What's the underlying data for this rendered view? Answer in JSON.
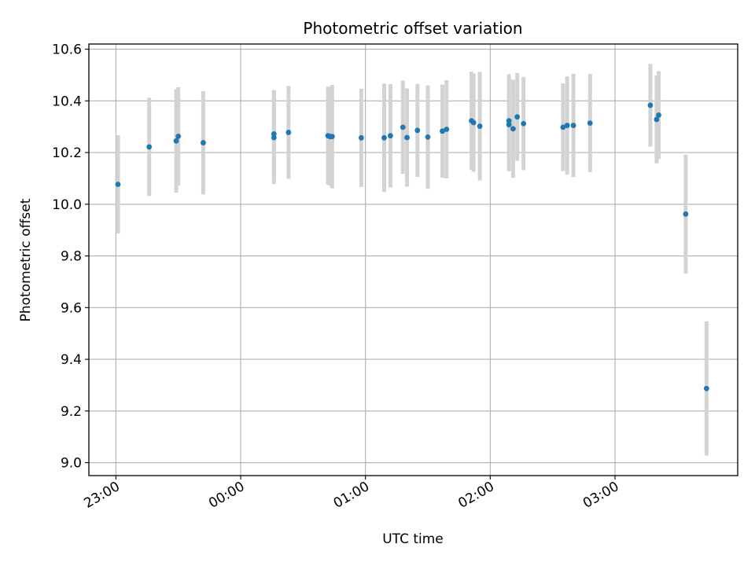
{
  "chart_data": {
    "type": "scatter",
    "title": "Photometric offset variation",
    "xlabel": "UTC time",
    "ylabel": "Photometric offset",
    "x_unit": "UTC",
    "x_ticks": [
      "23:00",
      "00:00",
      "01:00",
      "02:00",
      "03:00"
    ],
    "x_range": [
      "22:47",
      "03:59"
    ],
    "ylim": [
      8.95,
      10.62
    ],
    "y_ticks": [
      "9.0",
      "9.2",
      "9.4",
      "9.6",
      "9.8",
      "10.0",
      "10.2",
      "10.4",
      "10.6"
    ],
    "grid": true,
    "colors": {
      "point": "#1f77b4",
      "errorbar": "#d3d3d3",
      "grid": "#b0b0b0"
    },
    "series": [
      {
        "points": [
          {
            "time": "23:01",
            "y": 10.077,
            "err": 0.19
          },
          {
            "time": "23:16",
            "y": 10.222,
            "err": 0.19
          },
          {
            "time": "23:29",
            "y": 10.245,
            "err": 0.2
          },
          {
            "time": "23:30",
            "y": 10.263,
            "err": 0.19
          },
          {
            "time": "23:42",
            "y": 10.238,
            "err": 0.2
          },
          {
            "time": "00:16",
            "y": 10.272,
            "err": 0.17
          },
          {
            "time": "00:16",
            "y": 10.258,
            "err": 0.18
          },
          {
            "time": "00:23",
            "y": 10.278,
            "err": 0.18
          },
          {
            "time": "00:42",
            "y": 10.265,
            "err": 0.19
          },
          {
            "time": "00:43",
            "y": 10.262,
            "err": 0.19
          },
          {
            "time": "00:44",
            "y": 10.262,
            "err": 0.2
          },
          {
            "time": "00:58",
            "y": 10.257,
            "err": 0.19
          },
          {
            "time": "01:09",
            "y": 10.257,
            "err": 0.21
          },
          {
            "time": "01:12",
            "y": 10.265,
            "err": 0.2
          },
          {
            "time": "01:18",
            "y": 10.298,
            "err": 0.18
          },
          {
            "time": "01:20",
            "y": 10.258,
            "err": 0.19
          },
          {
            "time": "01:25",
            "y": 10.286,
            "err": 0.18
          },
          {
            "time": "01:30",
            "y": 10.26,
            "err": 0.2
          },
          {
            "time": "01:37",
            "y": 10.283,
            "err": 0.18
          },
          {
            "time": "01:39",
            "y": 10.29,
            "err": 0.19
          },
          {
            "time": "01:51",
            "y": 10.323,
            "err": 0.19
          },
          {
            "time": "01:52",
            "y": 10.316,
            "err": 0.19
          },
          {
            "time": "01:55",
            "y": 10.302,
            "err": 0.21
          },
          {
            "time": "02:09",
            "y": 10.308,
            "err": 0.18
          },
          {
            "time": "02:09",
            "y": 10.323,
            "err": 0.18
          },
          {
            "time": "02:11",
            "y": 10.292,
            "err": 0.19
          },
          {
            "time": "02:13",
            "y": 10.338,
            "err": 0.17
          },
          {
            "time": "02:16",
            "y": 10.312,
            "err": 0.18
          },
          {
            "time": "02:35",
            "y": 10.298,
            "err": 0.17
          },
          {
            "time": "02:37",
            "y": 10.305,
            "err": 0.19
          },
          {
            "time": "02:40",
            "y": 10.305,
            "err": 0.2
          },
          {
            "time": "02:48",
            "y": 10.314,
            "err": 0.19
          },
          {
            "time": "03:17",
            "y": 10.383,
            "err": 0.16
          },
          {
            "time": "03:20",
            "y": 10.328,
            "err": 0.17
          },
          {
            "time": "03:21",
            "y": 10.345,
            "err": 0.17
          },
          {
            "time": "03:34",
            "y": 9.962,
            "err": 0.23
          },
          {
            "time": "03:44",
            "y": 9.287,
            "err": 0.26
          }
        ]
      }
    ]
  }
}
